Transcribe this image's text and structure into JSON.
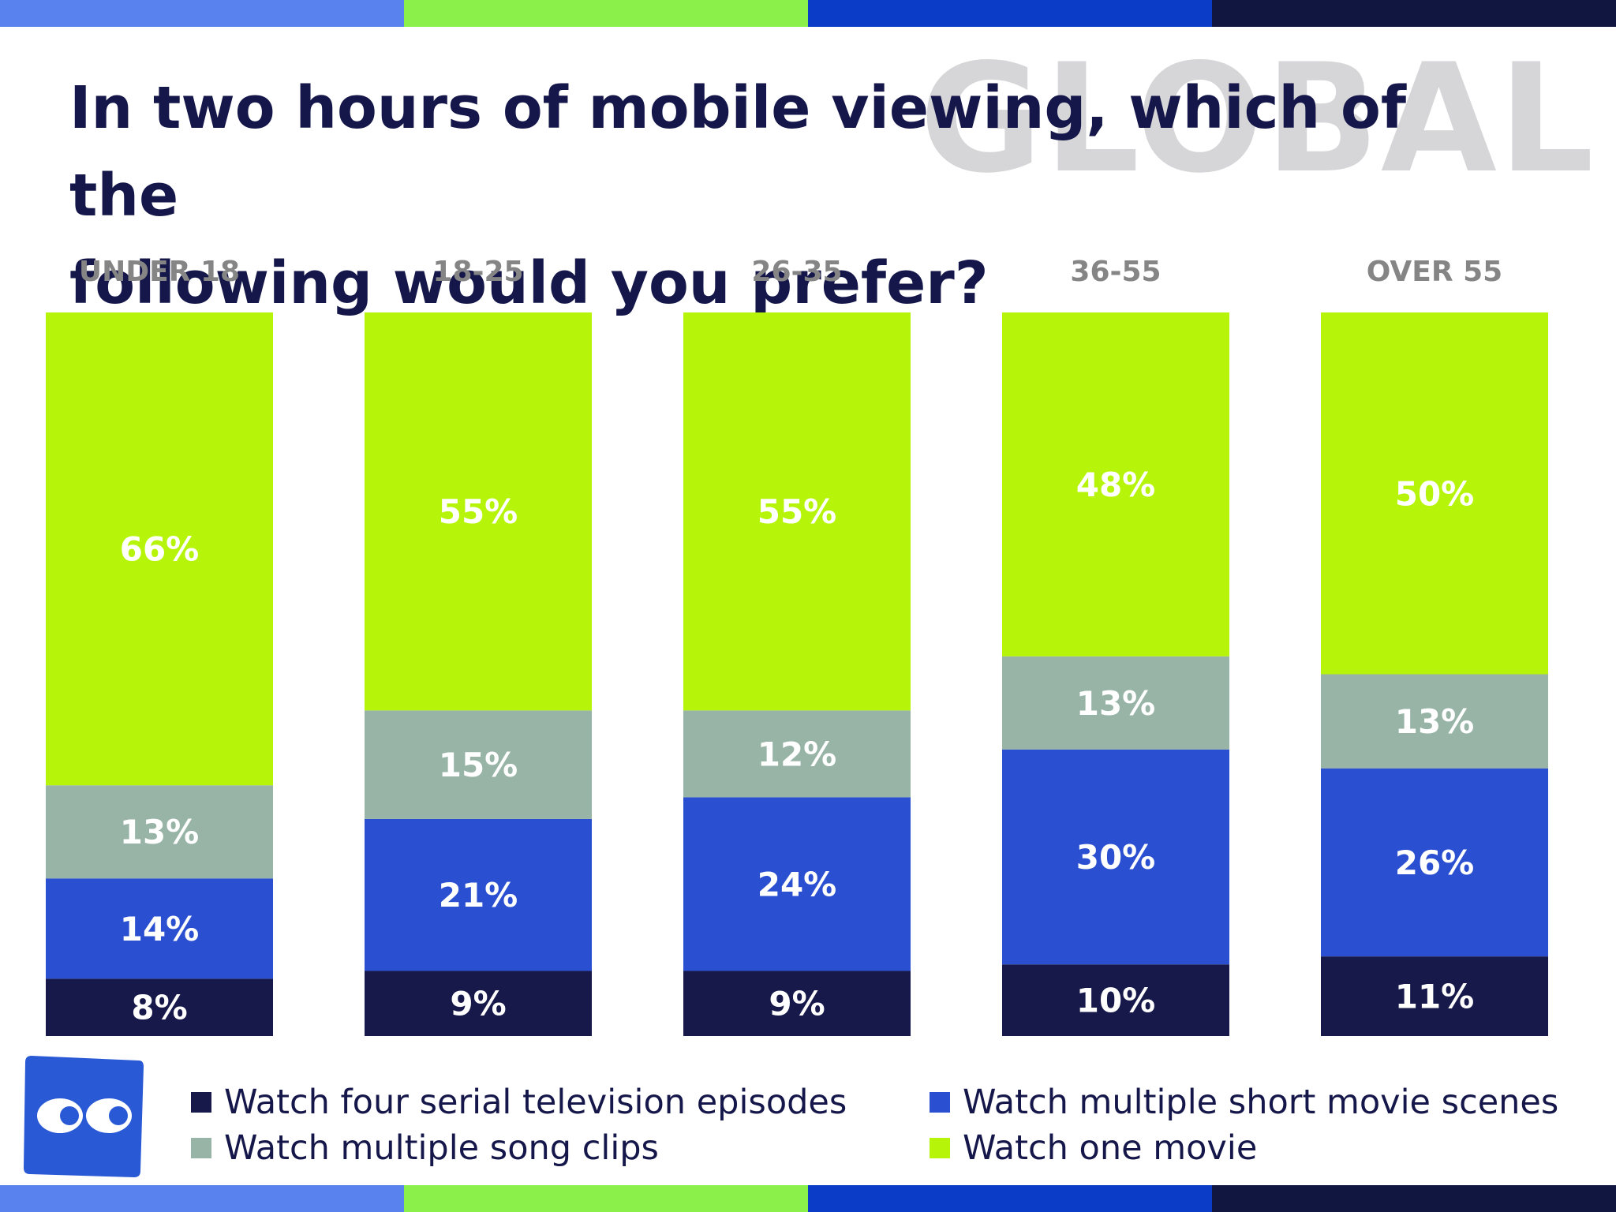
{
  "header": {
    "title_line1": "In two hours of mobile viewing, which of the",
    "title_line2": "following would you prefer?",
    "watermark": "GLOBAL"
  },
  "colors": {
    "navy": "#16194a",
    "blue": "#2a4fd1",
    "grey": "#98b4a7",
    "lime": "#b6f50a",
    "stripe": [
      "#5a82ee",
      "#8bf04a",
      "#0a3cc8",
      "#111640"
    ],
    "logo": "#2a59d6"
  },
  "chart_data": {
    "type": "bar",
    "stacked": true,
    "categories": [
      "UNDER 18",
      "18-25",
      "26-35",
      "36-55",
      "OVER 55"
    ],
    "series": [
      {
        "name": "Watch four serial television episodes",
        "color": "#16194a",
        "values": [
          8,
          9,
          9,
          10,
          11
        ]
      },
      {
        "name": "Watch multiple short movie scenes",
        "color": "#2a4fd1",
        "values": [
          14,
          21,
          24,
          30,
          26
        ]
      },
      {
        "name": "Watch multiple song clips",
        "color": "#98b4a7",
        "values": [
          13,
          15,
          12,
          13,
          13
        ]
      },
      {
        "name": "Watch one movie",
        "color": "#b6f50a",
        "values": [
          66,
          55,
          55,
          48,
          50
        ]
      }
    ],
    "value_suffix": "%",
    "legend_placement": "bottom",
    "grid": false
  },
  "legend": {
    "items": [
      {
        "label": "Watch four serial television episodes",
        "color": "#16194a"
      },
      {
        "label": "Watch multiple short movie scenes",
        "color": "#2a4fd1"
      },
      {
        "label": "Watch multiple song clips",
        "color": "#98b4a7"
      },
      {
        "label": "Watch one movie",
        "color": "#b6f50a"
      }
    ]
  },
  "logo": {
    "name": "eyes-logo-icon"
  }
}
